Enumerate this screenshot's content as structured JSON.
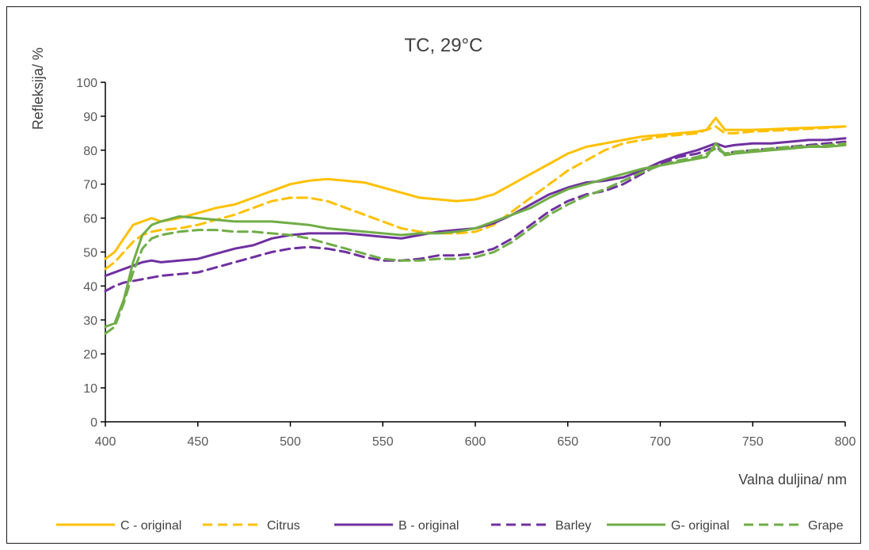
{
  "chart_data": {
    "type": "line",
    "title": "TC, 29°C",
    "xlabel": "Valna duljina/ nm",
    "ylabel": "Refleksija/ %",
    "xlim": [
      400,
      800
    ],
    "ylim": [
      0,
      100
    ],
    "x_ticks": [
      "400",
      "450",
      "500",
      "550",
      "600",
      "650",
      "700",
      "750",
      "800"
    ],
    "y_ticks": [
      "0",
      "10",
      "20",
      "30",
      "40",
      "50",
      "60",
      "70",
      "80",
      "90",
      "100"
    ],
    "grid": false,
    "legend_position": "bottom",
    "x": [
      400,
      405,
      410,
      415,
      420,
      425,
      430,
      440,
      450,
      460,
      470,
      480,
      490,
      500,
      510,
      520,
      530,
      540,
      550,
      560,
      570,
      580,
      590,
      600,
      610,
      620,
      630,
      640,
      650,
      660,
      670,
      680,
      690,
      700,
      710,
      720,
      725,
      730,
      735,
      740,
      750,
      760,
      770,
      780,
      790,
      800
    ],
    "series": [
      {
        "name": "C - original",
        "color": "#FFC000",
        "dash": false,
        "values": [
          48,
          50,
          54,
          58,
          59,
          60,
          59,
          60,
          61.5,
          63,
          64,
          66,
          68,
          70,
          71,
          71.5,
          71,
          70.5,
          69,
          67.5,
          66,
          65.5,
          65,
          65.5,
          67,
          70,
          73,
          76,
          79,
          81,
          82,
          83,
          84,
          84.5,
          85,
          85.5,
          86,
          89.5,
          86,
          86,
          86,
          86.2,
          86.4,
          86.6,
          86.8,
          87
        ]
      },
      {
        "name": "Citrus",
        "color": "#FFC000",
        "dash": true,
        "values": [
          45,
          47,
          50,
          53,
          55,
          56,
          56.5,
          57,
          58,
          59.5,
          61,
          63,
          65,
          66,
          66,
          65,
          63,
          61,
          59,
          57,
          56,
          55.5,
          55.5,
          56,
          58,
          62,
          66,
          70,
          74,
          77,
          80,
          82,
          83,
          84,
          84.5,
          85,
          86,
          87,
          85,
          85,
          85.5,
          85.7,
          86,
          86.3,
          86.6,
          87
        ]
      },
      {
        "name": "B - original",
        "color": "#7030A0",
        "dash": false,
        "values": [
          43,
          44,
          45,
          46,
          47,
          47.5,
          47,
          47.5,
          48,
          49.5,
          51,
          52,
          54,
          55,
          55.5,
          55.5,
          55.5,
          55,
          54.5,
          54,
          55,
          56,
          56.5,
          57,
          58.5,
          61,
          64,
          67,
          69,
          70.5,
          71,
          72,
          74,
          76.5,
          78.5,
          80,
          81,
          82,
          81,
          81.5,
          82,
          82,
          82.5,
          83,
          83,
          83.5
        ]
      },
      {
        "name": "Barley",
        "color": "#7030A0",
        "dash": true,
        "values": [
          38.5,
          40,
          41,
          41.5,
          42,
          42.5,
          43,
          43.5,
          44,
          45.5,
          47,
          48.5,
          50,
          51,
          51.5,
          51,
          50,
          48.5,
          47.5,
          47.5,
          48,
          49,
          49,
          49.5,
          51,
          54,
          58,
          62,
          65,
          67,
          68,
          70,
          73,
          76,
          78,
          79,
          80,
          81,
          79,
          79.5,
          80,
          80.5,
          81,
          81.5,
          82,
          82.5
        ]
      },
      {
        "name": "G- original",
        "color": "#70AD47",
        "dash": false,
        "values": [
          28,
          29,
          36,
          47,
          55,
          58,
          59,
          60.5,
          60,
          59.5,
          59,
          59,
          59,
          58.5,
          58,
          57,
          56.5,
          56,
          55.5,
          55,
          55.5,
          55.5,
          56,
          57,
          59,
          61,
          63,
          66,
          68.5,
          70,
          71.5,
          73,
          74.5,
          75.5,
          76.5,
          77.5,
          78,
          82,
          78.5,
          79,
          79.5,
          80,
          80.5,
          81,
          81,
          81.5
        ]
      },
      {
        "name": "Grape",
        "color": "#70AD47",
        "dash": true,
        "values": [
          26,
          28,
          35,
          44,
          51,
          54,
          55,
          56,
          56.5,
          56.5,
          56,
          56,
          55.5,
          55,
          54,
          52.5,
          51,
          49.5,
          48,
          47.5,
          47.5,
          48,
          48,
          48.5,
          50,
          53,
          57,
          61,
          64,
          66.5,
          68.5,
          71,
          73.5,
          75.5,
          77,
          78,
          79,
          80.5,
          79,
          79.5,
          80,
          80.5,
          81,
          81.2,
          81.5,
          82
        ]
      }
    ]
  }
}
